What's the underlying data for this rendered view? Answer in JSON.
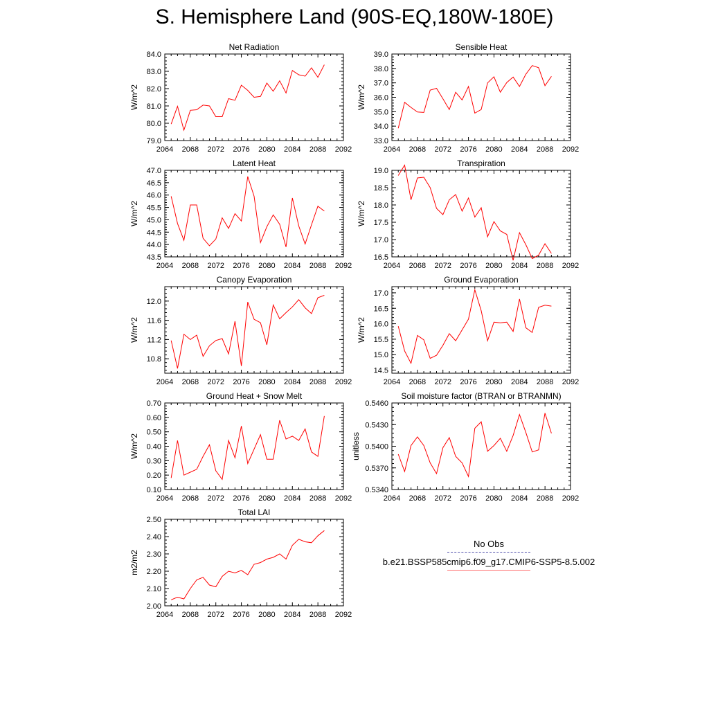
{
  "title": "S. Hemisphere Land (90S-EQ,180W-180E)",
  "legend": {
    "obs_label": "No Obs",
    "model_label": "b.e21.BSSP585cmip6.f09_g17.CMIP6-SSP5-8.5.002",
    "obs_color": "#4a4aa8",
    "model_color": "#ff0000"
  },
  "chart_data": [
    {
      "type": "line",
      "title": "Net Radiation",
      "ylabel": "W/m^2",
      "xlim": [
        2064,
        2092
      ],
      "ylim": [
        79.0,
        84.0
      ],
      "xticks": [
        "2064",
        "2068",
        "2072",
        "2076",
        "2080",
        "2084",
        "2088",
        "2092"
      ],
      "yticks": [
        "79.0",
        "80.0",
        "81.0",
        "82.0",
        "83.0",
        "84.0"
      ],
      "x": [
        2065,
        2066,
        2067,
        2068,
        2069,
        2070,
        2071,
        2072,
        2073,
        2074,
        2075,
        2076,
        2077,
        2078,
        2079,
        2080,
        2081,
        2082,
        2083,
        2084,
        2085,
        2086,
        2087,
        2088,
        2089
      ],
      "series": [
        {
          "color": "#ff0000",
          "values": [
            79.95,
            80.98,
            79.6,
            80.75,
            80.78,
            81.05,
            81.0,
            80.38,
            80.38,
            81.42,
            81.33,
            82.2,
            81.9,
            81.5,
            81.55,
            82.32,
            81.85,
            82.45,
            81.75,
            83.05,
            82.8,
            82.72,
            83.2,
            82.65,
            83.38
          ]
        }
      ]
    },
    {
      "type": "line",
      "title": "Sensible Heat",
      "ylabel": "W/m^2",
      "xlim": [
        2064,
        2092
      ],
      "ylim": [
        33.0,
        39.0
      ],
      "xticks": [
        "2064",
        "2068",
        "2072",
        "2076",
        "2080",
        "2084",
        "2088",
        "2092"
      ],
      "yticks": [
        "33.0",
        "34.0",
        "35.0",
        "36.0",
        "37.0",
        "38.0",
        "39.0"
      ],
      "x": [
        2065,
        2066,
        2067,
        2068,
        2069,
        2070,
        2071,
        2072,
        2073,
        2074,
        2075,
        2076,
        2077,
        2078,
        2079,
        2080,
        2081,
        2082,
        2083,
        2084,
        2085,
        2086,
        2087,
        2088,
        2089
      ],
      "series": [
        {
          "color": "#ff0000",
          "values": [
            33.85,
            35.65,
            35.3,
            34.98,
            34.95,
            36.5,
            36.62,
            35.9,
            35.15,
            36.35,
            35.82,
            36.75,
            34.9,
            35.15,
            37.0,
            37.42,
            36.35,
            37.02,
            37.4,
            36.75,
            37.6,
            38.2,
            38.05,
            36.8,
            37.45
          ]
        }
      ]
    },
    {
      "type": "line",
      "title": "Latent Heat",
      "ylabel": "W/m^2",
      "xlim": [
        2064,
        2092
      ],
      "ylim": [
        43.5,
        47.0
      ],
      "xticks": [
        "2064",
        "2068",
        "2072",
        "2076",
        "2080",
        "2084",
        "2088",
        "2092"
      ],
      "yticks": [
        "43.5",
        "44.0",
        "44.5",
        "45.0",
        "45.5",
        "46.0",
        "46.5",
        "47.0"
      ],
      "x": [
        2065,
        2066,
        2067,
        2068,
        2069,
        2070,
        2071,
        2072,
        2073,
        2074,
        2075,
        2076,
        2077,
        2078,
        2079,
        2080,
        2081,
        2082,
        2083,
        2084,
        2085,
        2086,
        2087,
        2088,
        2089
      ],
      "series": [
        {
          "color": "#ff0000",
          "values": [
            45.95,
            44.85,
            44.17,
            45.6,
            45.6,
            44.25,
            43.95,
            44.22,
            45.08,
            44.65,
            45.25,
            44.95,
            46.75,
            45.95,
            44.08,
            44.72,
            45.2,
            44.82,
            43.9,
            45.88,
            44.75,
            44.02,
            44.8,
            45.55,
            45.35
          ]
        }
      ]
    },
    {
      "type": "line",
      "title": "Transpiration",
      "ylabel": "W/m^2",
      "xlim": [
        2064,
        2092
      ],
      "ylim": [
        16.5,
        19.0
      ],
      "xticks": [
        "2064",
        "2068",
        "2072",
        "2076",
        "2080",
        "2084",
        "2088",
        "2092"
      ],
      "yticks": [
        "16.5",
        "17.0",
        "17.5",
        "18.0",
        "18.5",
        "19.0"
      ],
      "x": [
        2065,
        2066,
        2067,
        2068,
        2069,
        2070,
        2071,
        2072,
        2073,
        2074,
        2075,
        2076,
        2077,
        2078,
        2079,
        2080,
        2081,
        2082,
        2083,
        2084,
        2085,
        2086,
        2087,
        2088,
        2089
      ],
      "series": [
        {
          "color": "#ff0000",
          "values": [
            18.85,
            19.15,
            18.15,
            18.78,
            18.8,
            18.5,
            17.9,
            17.72,
            18.15,
            18.3,
            17.82,
            18.2,
            17.65,
            17.92,
            17.08,
            17.52,
            17.25,
            17.15,
            16.4,
            17.2,
            16.85,
            16.45,
            16.55,
            16.88,
            16.6
          ]
        }
      ]
    },
    {
      "type": "line",
      "title": "Canopy Evaporation",
      "ylabel": "W/m^2",
      "xlim": [
        2064,
        2092
      ],
      "ylim": [
        10.5,
        12.3
      ],
      "xticks": [
        "2064",
        "2068",
        "2072",
        "2076",
        "2080",
        "2084",
        "2088",
        "2092"
      ],
      "yticks": [
        "10.8",
        "11.2",
        "11.6",
        "12.0"
      ],
      "x": [
        2065,
        2066,
        2067,
        2068,
        2069,
        2070,
        2071,
        2072,
        2073,
        2074,
        2075,
        2076,
        2077,
        2078,
        2079,
        2080,
        2081,
        2082,
        2083,
        2084,
        2085,
        2086,
        2087,
        2088,
        2089
      ],
      "series": [
        {
          "color": "#ff0000",
          "values": [
            11.18,
            10.6,
            11.31,
            11.2,
            11.29,
            10.85,
            11.07,
            11.18,
            11.22,
            10.9,
            11.58,
            10.65,
            11.98,
            11.62,
            11.55,
            11.09,
            11.92,
            11.63,
            11.76,
            11.88,
            12.03,
            11.86,
            11.74,
            12.07,
            12.12
          ]
        }
      ]
    },
    {
      "type": "line",
      "title": "Ground Evaporation",
      "ylabel": "W/m^2",
      "xlim": [
        2064,
        2092
      ],
      "ylim": [
        14.4,
        17.2
      ],
      "xticks": [
        "2064",
        "2068",
        "2072",
        "2076",
        "2080",
        "2084",
        "2088",
        "2092"
      ],
      "yticks": [
        "14.5",
        "15.0",
        "15.5",
        "16.0",
        "16.5",
        "17.0"
      ],
      "x": [
        2065,
        2066,
        2067,
        2068,
        2069,
        2070,
        2071,
        2072,
        2073,
        2074,
        2075,
        2076,
        2077,
        2078,
        2079,
        2080,
        2081,
        2082,
        2083,
        2084,
        2085,
        2086,
        2087,
        2088,
        2089
      ],
      "series": [
        {
          "color": "#ff0000",
          "values": [
            15.92,
            15.12,
            14.72,
            15.62,
            15.48,
            14.88,
            14.98,
            15.3,
            15.68,
            15.45,
            15.8,
            16.15,
            17.1,
            16.42,
            15.45,
            16.05,
            16.03,
            16.05,
            15.75,
            16.8,
            15.87,
            15.72,
            16.53,
            16.6,
            16.57
          ]
        }
      ]
    },
    {
      "type": "line",
      "title": "Ground Heat + Snow Melt",
      "ylabel": "W/m^2",
      "xlim": [
        2064,
        2092
      ],
      "ylim": [
        0.1,
        0.7
      ],
      "xticks": [
        "2064",
        "2068",
        "2072",
        "2076",
        "2080",
        "2084",
        "2088",
        "2092"
      ],
      "yticks": [
        "0.10",
        "0.20",
        "0.30",
        "0.40",
        "0.50",
        "0.60",
        "0.70"
      ],
      "x": [
        2065,
        2066,
        2067,
        2068,
        2069,
        2070,
        2071,
        2072,
        2073,
        2074,
        2075,
        2076,
        2077,
        2078,
        2079,
        2080,
        2081,
        2082,
        2083,
        2084,
        2085,
        2086,
        2087,
        2088,
        2089
      ],
      "series": [
        {
          "color": "#ff0000",
          "values": [
            0.18,
            0.44,
            0.2,
            0.22,
            0.24,
            0.33,
            0.41,
            0.23,
            0.17,
            0.44,
            0.32,
            0.54,
            0.28,
            0.38,
            0.48,
            0.31,
            0.31,
            0.58,
            0.45,
            0.47,
            0.44,
            0.52,
            0.36,
            0.33,
            0.61
          ]
        }
      ]
    },
    {
      "type": "line",
      "title": "Soil moisture factor (BTRAN or BTRANMN)",
      "ylabel": "unitless",
      "xlim": [
        2064,
        2092
      ],
      "ylim": [
        0.534,
        0.546
      ],
      "xticks": [
        "2064",
        "2068",
        "2072",
        "2076",
        "2080",
        "2084",
        "2088",
        "2092"
      ],
      "yticks": [
        "0.5340",
        "0.5370",
        "0.5400",
        "0.5430",
        "0.5460"
      ],
      "x": [
        2065,
        2066,
        2067,
        2068,
        2069,
        2070,
        2071,
        2072,
        2073,
        2074,
        2075,
        2076,
        2077,
        2078,
        2079,
        2080,
        2081,
        2082,
        2083,
        2084,
        2085,
        2086,
        2087,
        2088,
        2089
      ],
      "series": [
        {
          "color": "#ff0000",
          "values": [
            0.5389,
            0.5365,
            0.5401,
            0.5413,
            0.5401,
            0.5377,
            0.5362,
            0.5398,
            0.5412,
            0.5386,
            0.5377,
            0.5358,
            0.5425,
            0.5434,
            0.5393,
            0.5401,
            0.5411,
            0.5393,
            0.5415,
            0.5444,
            0.5419,
            0.5392,
            0.5395,
            0.5446,
            0.5418
          ]
        }
      ]
    },
    {
      "type": "line",
      "title": "Total LAI",
      "ylabel": "m2/m2",
      "xlim": [
        2064,
        2092
      ],
      "ylim": [
        2.0,
        2.5
      ],
      "xticks": [
        "2064",
        "2068",
        "2072",
        "2076",
        "2080",
        "2084",
        "2088",
        "2092"
      ],
      "yticks": [
        "2.00",
        "2.10",
        "2.20",
        "2.30",
        "2.40",
        "2.50"
      ],
      "x": [
        2065,
        2066,
        2067,
        2068,
        2069,
        2070,
        2071,
        2072,
        2073,
        2074,
        2075,
        2076,
        2077,
        2078,
        2079,
        2080,
        2081,
        2082,
        2083,
        2084,
        2085,
        2086,
        2087,
        2088,
        2089
      ],
      "series": [
        {
          "color": "#ff0000",
          "values": [
            2.035,
            2.05,
            2.04,
            2.1,
            2.15,
            2.165,
            2.12,
            2.11,
            2.17,
            2.2,
            2.19,
            2.205,
            2.18,
            2.24,
            2.25,
            2.27,
            2.28,
            2.3,
            2.27,
            2.35,
            2.385,
            2.37,
            2.365,
            2.405,
            2.435
          ]
        }
      ]
    }
  ]
}
